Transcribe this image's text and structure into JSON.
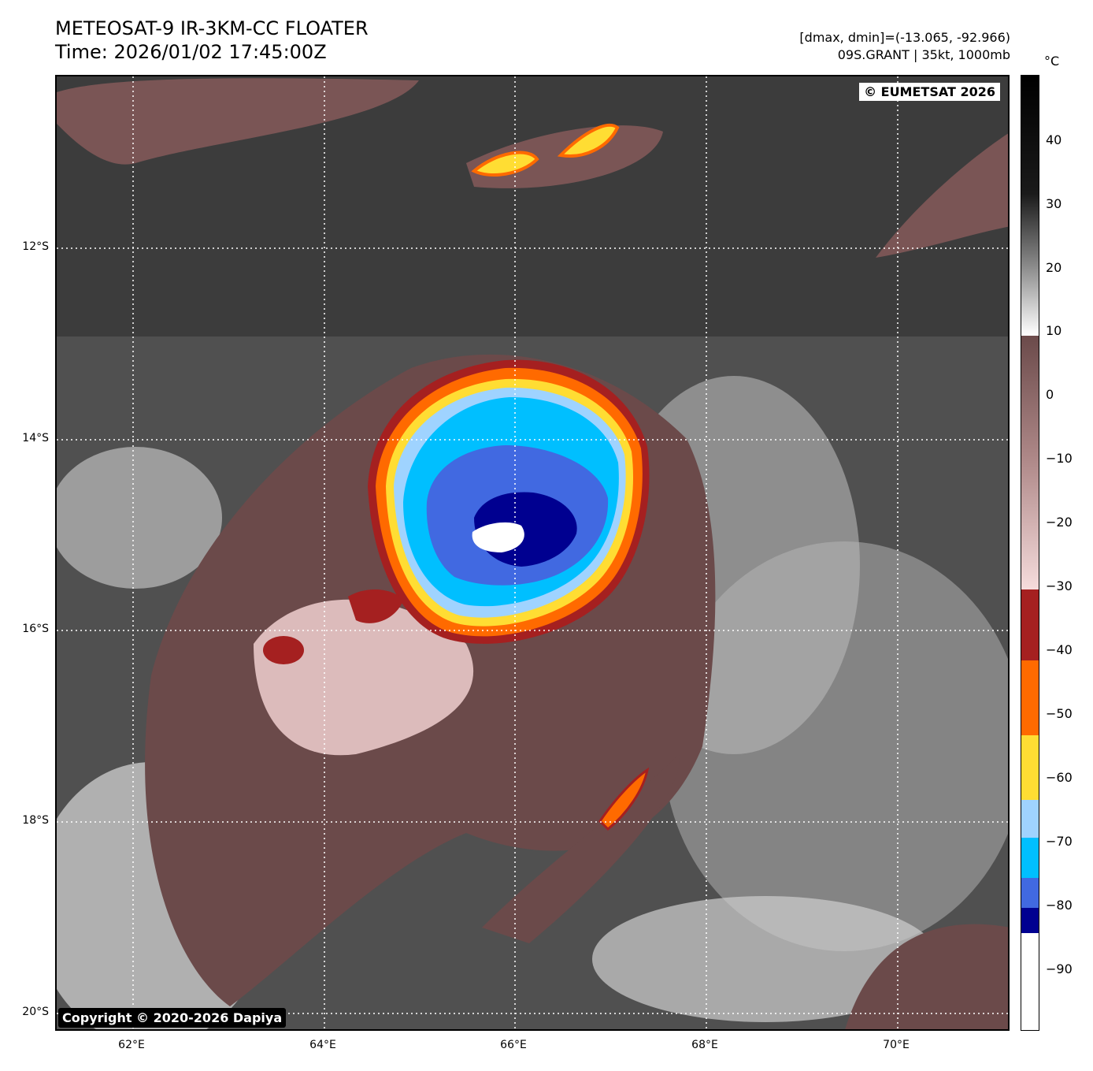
{
  "header": {
    "title_line1": "METEOSAT-9 IR-3KM-CC FLOATER",
    "title_line2": "Time: 2026/01/02 17:45:00Z",
    "meta_line1": "[dmax, dmin]=(-13.065, -92.966)",
    "meta_line2": "09S.GRANT | 35kt, 1000mb"
  },
  "map": {
    "eumetsat_badge": "© EUMETSAT 2026",
    "copyright_badge": "Copyright © 2020-2026 Dapiya",
    "lat_labels": [
      "12°S",
      "14°S",
      "16°S",
      "18°S",
      "20°S"
    ],
    "lon_labels": [
      "62°E",
      "64°E",
      "66°E",
      "68°E",
      "70°E"
    ]
  },
  "colorbar": {
    "unit": "°C",
    "ticks": [
      "40",
      "30",
      "20",
      "10",
      "0",
      "−10",
      "−20",
      "−30",
      "−40",
      "−50",
      "−60",
      "−70",
      "−80",
      "−90"
    ],
    "colors": {
      "warm_black": "#000000",
      "gray": "#808080",
      "white": "#ffffff",
      "brown": "#6b4a4a",
      "pink": "#f0cfcf",
      "dark_red": "#a52020",
      "orange": "#ff6a00",
      "yellow": "#ffdd33",
      "light_blue": "#9fd3ff",
      "cyan": "#00bfff",
      "royal_blue": "#4169e1",
      "navy": "#000090"
    }
  }
}
